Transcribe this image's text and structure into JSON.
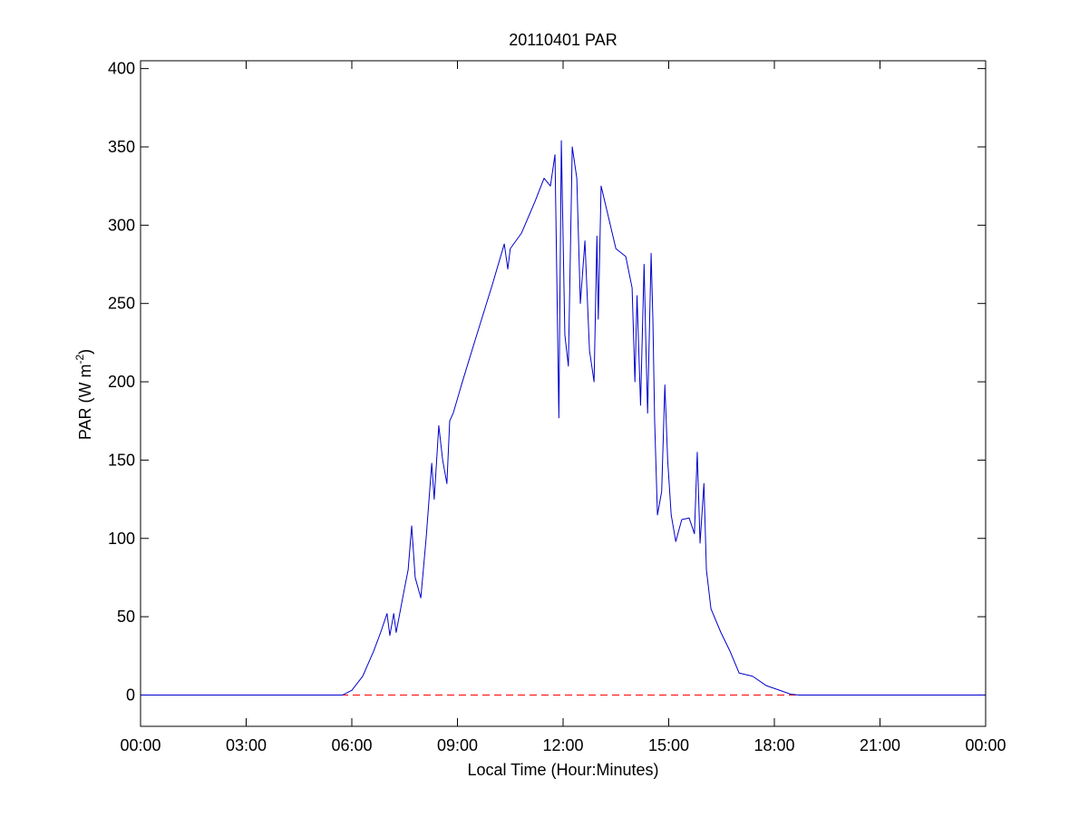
{
  "chart_data": {
    "type": "line",
    "title": "20110401 PAR",
    "xlabel": "Local Time (Hour:Minutes)",
    "ylabel": [
      "PAR (W m",
      "-2",
      ")"
    ],
    "xlim": [
      0,
      24
    ],
    "xticks": [
      {
        "value": 0,
        "label": "00:00"
      },
      {
        "value": 3,
        "label": "03:00"
      },
      {
        "value": 6,
        "label": "06:00"
      },
      {
        "value": 9,
        "label": "09:00"
      },
      {
        "value": 12,
        "label": "12:00"
      },
      {
        "value": 15,
        "label": "15:00"
      },
      {
        "value": 18,
        "label": "18:00"
      },
      {
        "value": 21,
        "label": "21:00"
      },
      {
        "value": 24,
        "label": "00:00"
      }
    ],
    "ylim": [
      -20,
      405
    ],
    "yticks": [
      0,
      50,
      100,
      150,
      200,
      250,
      300,
      350,
      400
    ],
    "grid": false,
    "reference_line": {
      "value": 0,
      "color": "#ff0000",
      "style": "dashed"
    },
    "series": [
      {
        "color": "#0000cc",
        "x": [
          0,
          5.74,
          6.0,
          6.31,
          6.62,
          6.82,
          7.0,
          7.08,
          7.19,
          7.26,
          7.47,
          7.6,
          7.7,
          7.8,
          7.96,
          8.11,
          8.27,
          8.34,
          8.47,
          8.58,
          8.7,
          8.78,
          8.88,
          9.14,
          9.48,
          9.99,
          10.33,
          10.43,
          10.5,
          10.82,
          11.2,
          11.46,
          11.64,
          11.77,
          11.88,
          11.95,
          12.05,
          12.15,
          12.26,
          12.39,
          12.49,
          12.62,
          12.75,
          12.88,
          12.96,
          13.0,
          13.08,
          13.5,
          13.78,
          13.96,
          14.04,
          14.1,
          14.2,
          14.3,
          14.35,
          14.4,
          14.5,
          14.55,
          14.6,
          14.68,
          14.8,
          14.89,
          14.97,
          15.07,
          15.2,
          15.37,
          15.58,
          15.73,
          15.81,
          15.89,
          16.0,
          16.07,
          16.2,
          16.48,
          16.74,
          17.0,
          17.38,
          17.77,
          18.15,
          18.47,
          18.7,
          24
        ],
        "values": [
          0,
          0,
          3,
          12,
          28,
          40,
          52,
          38,
          52,
          40,
          65,
          80,
          108,
          75,
          62,
          100,
          148,
          125,
          172,
          150,
          135,
          175,
          180,
          200,
          225,
          262,
          288,
          272,
          285,
          295,
          315,
          330,
          325,
          345,
          177,
          354,
          230,
          210,
          350,
          330,
          250,
          290,
          220,
          200,
          293,
          240,
          325,
          285,
          280,
          260,
          200,
          255,
          185,
          275,
          225,
          180,
          282,
          240,
          175,
          115,
          130,
          198,
          150,
          115,
          98,
          112,
          113,
          103,
          155,
          97,
          135,
          80,
          55,
          40,
          28,
          14,
          12,
          6,
          3,
          0.5,
          0,
          0
        ]
      }
    ]
  }
}
